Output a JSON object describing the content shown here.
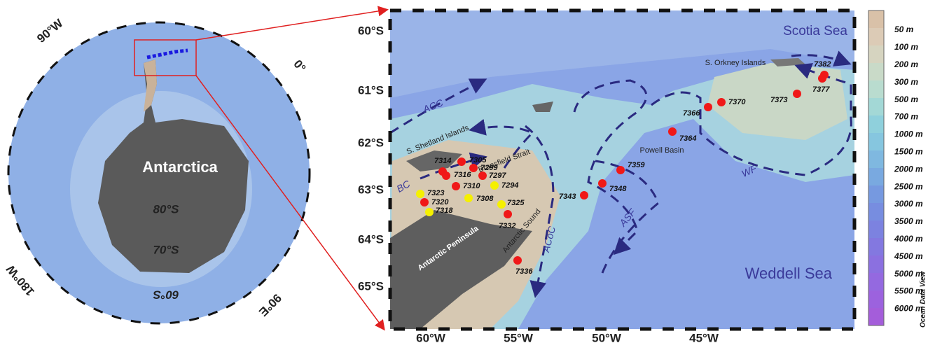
{
  "overview_map": {
    "continent": "Antarctica",
    "longitude_labels": [
      "90°W",
      "0°",
      "180°W",
      "90°E"
    ],
    "latitude_labels": [
      "80°S",
      "70°S",
      "60°S"
    ]
  },
  "detail_map": {
    "latitude_labels": [
      "60°S",
      "61°S",
      "62°S",
      "63°S",
      "64°S",
      "65°S"
    ],
    "longitude_labels": [
      "60°W",
      "55°W",
      "50°W",
      "45°W"
    ],
    "seas": [
      "Scotia Sea",
      "Weddell Sea"
    ],
    "features": [
      "S. Orkney Islands",
      "Powell Basin",
      "S. Shetland Islands",
      "Bransfield Strait",
      "Antarctic Peninsula",
      "Antarctic Sound"
    ],
    "currents": [
      "ACC",
      "BC",
      "ACoC",
      "ASF",
      "WF"
    ],
    "stations": [
      {
        "label": "7314",
        "color": "red"
      },
      {
        "label": "7316",
        "color": "red"
      },
      {
        "label": "7305",
        "color": "red"
      },
      {
        "label": "7299",
        "color": "red"
      },
      {
        "label": "7297",
        "color": "red"
      },
      {
        "label": "7310",
        "color": "red"
      },
      {
        "label": "7294",
        "color": "yellow"
      },
      {
        "label": "7323",
        "color": "yellow"
      },
      {
        "label": "7308",
        "color": "yellow"
      },
      {
        "label": "7320",
        "color": "red"
      },
      {
        "label": "7325",
        "color": "yellow"
      },
      {
        "label": "7318",
        "color": "yellow"
      },
      {
        "label": "7332",
        "color": "red"
      },
      {
        "label": "7343",
        "color": "red"
      },
      {
        "label": "7348",
        "color": "red"
      },
      {
        "label": "7359",
        "color": "red"
      },
      {
        "label": "7364",
        "color": "red"
      },
      {
        "label": "7366",
        "color": "red"
      },
      {
        "label": "7370",
        "color": "red"
      },
      {
        "label": "7373",
        "color": "red"
      },
      {
        "label": "7377",
        "color": "red"
      },
      {
        "label": "7382",
        "color": "red"
      },
      {
        "label": "7336",
        "color": "red"
      }
    ]
  },
  "colorbar": {
    "labels": [
      "50 m",
      "100 m",
      "200 m",
      "300 m",
      "500 m",
      "700 m",
      "1000 m",
      "1500 m",
      "2000 m",
      "2500 m",
      "3000 m",
      "3500 m",
      "4000 m",
      "4500 m",
      "5000 m",
      "5500 m",
      "6000 m"
    ],
    "credit": "Ocean Data View"
  }
}
